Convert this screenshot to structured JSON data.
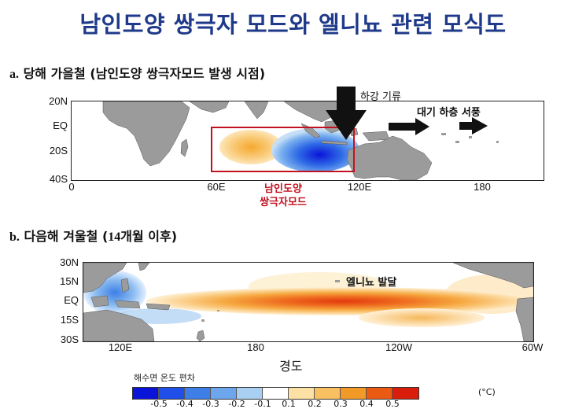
{
  "title": "남인도양 쌍극자 모드와 엘니뇨 관련 모식도",
  "panel_a": {
    "letter": "a.",
    "heading": "당해 가을철 (남인도양 쌍극자모드 발생 시점)",
    "lat_labels": [
      "20N",
      "EQ",
      "20S",
      "40S"
    ],
    "lon_labels": [
      "0",
      "60E",
      "120E",
      "180"
    ],
    "box_label_line1": "남인도양",
    "box_label_line2": "쌍극자모드",
    "downdraft_label": "하강 기류",
    "westerly_label": "대기 하층 서풍"
  },
  "panel_b": {
    "letter": "b.",
    "heading_pre": "다음해 겨울철 (",
    "heading_num": "14",
    "heading_post": "개월 이후)",
    "lat_labels": [
      "30N",
      "15N",
      "EQ",
      "15S",
      "30S"
    ],
    "lon_labels": [
      "120E",
      "180",
      "120W",
      "60W"
    ],
    "elnino_label": "엘니뇨 발달"
  },
  "xaxis_label": "경도",
  "colorbar": {
    "title": "해수면 온도 편차",
    "unit": "(°C)",
    "ticks": [
      "-0.5",
      "-0.4",
      "-0.3",
      "-0.2",
      "-0.1",
      "0.1",
      "0.2",
      "0.3",
      "0.4",
      "0.5"
    ],
    "colors": [
      "#0a14d8",
      "#1f4ee8",
      "#3d7fe6",
      "#6ea6ee",
      "#a9cff2",
      "#ffffff",
      "#fde0a4",
      "#f8c060",
      "#f29a28",
      "#ea5a12",
      "#d81e0a"
    ]
  }
}
